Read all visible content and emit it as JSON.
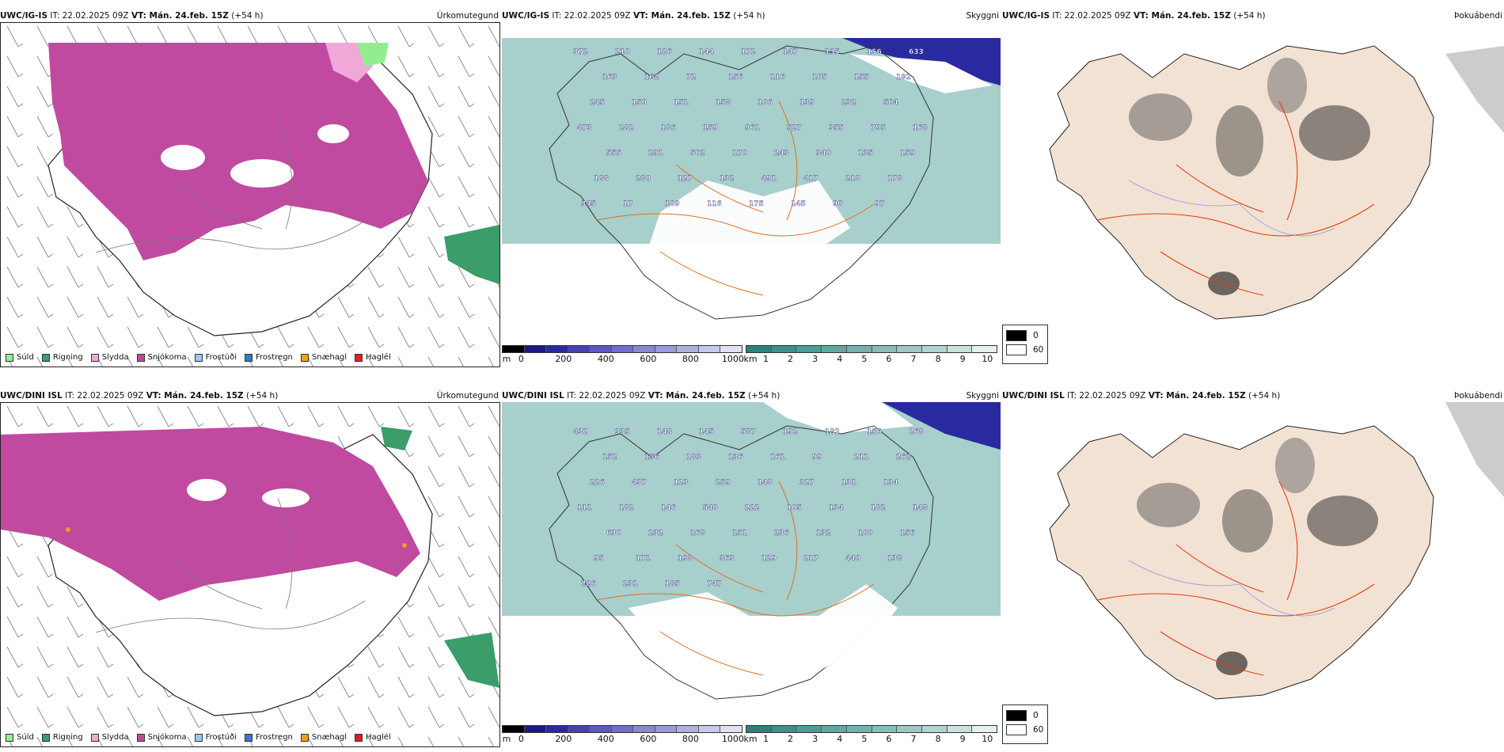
{
  "rows": [
    {
      "model": "UWC/IG-IS",
      "it": "IT: 22.02.2025 09Z",
      "vt": "VT: Mán. 24.feb. 15Z",
      "lead": "(+54 h)",
      "precip_title": "Úrkomutegund",
      "cloud_title": "Skyggni",
      "fog_title": "Þokuábendi"
    },
    {
      "model": "UWC/DINI ISL",
      "it": "IT: 22.02.2025 09Z",
      "vt": "VT: Mán. 24.feb. 15Z",
      "lead": "(+54 h)",
      "precip_title": "Úrkomutegund",
      "cloud_title": "Skyggni",
      "fog_title": "Þokuábendi"
    }
  ],
  "precip_legend": [
    {
      "label": "Súld",
      "color": "#90ee90"
    },
    {
      "label": "Rigning",
      "color": "#3a9d6a"
    },
    {
      "label": "Slydda",
      "color": "#f0a8d8"
    },
    {
      "label": "Snjókoma",
      "color": "#c04aa0"
    },
    {
      "label": "Frostúði",
      "color": "#9cc7f0"
    },
    {
      "label": "Frostregn",
      "color": "#3a78c8"
    },
    {
      "label": "Snæhagl",
      "color": "#f0a020"
    },
    {
      "label": "Haglél",
      "color": "#e02020"
    }
  ],
  "height_scale": {
    "unit": "m",
    "ticks": [
      "0",
      "200",
      "400",
      "600",
      "800",
      "1000"
    ],
    "colors": [
      "#000000",
      "#1a1a80",
      "#2a2aa0",
      "#4444b0",
      "#5a5ac0",
      "#7070c8",
      "#8888d0",
      "#9a9ad8",
      "#b0b0e0",
      "#c8c8ea",
      "#e0e0f4"
    ]
  },
  "visibility_scale": {
    "unit": "km",
    "ticks": [
      "1",
      "2",
      "3",
      "4",
      "5",
      "6",
      "7",
      "8",
      "9",
      "10"
    ],
    "colors": [
      "#2f7f7a",
      "#3f8f8a",
      "#4f9c96",
      "#60a8a2",
      "#72b3ad",
      "#85beb8",
      "#9ac9c3",
      "#b0d5d0",
      "#c8e2de",
      "#e2f0ee"
    ]
  },
  "fog_legend": [
    {
      "label": "0",
      "color": "#000000"
    },
    {
      "label": "60",
      "color": "#ffffff"
    }
  ],
  "ceiling_labels_top": [
    "372",
    "210",
    "126",
    "144",
    "172",
    "147",
    "135",
    "156",
    "633",
    "163",
    "162",
    "72",
    "156",
    "116",
    "105",
    "155",
    "182",
    "245",
    "150",
    "151",
    "158",
    "106",
    "139",
    "232",
    "504",
    "473",
    "282",
    "186",
    "159",
    "961",
    "527",
    "355",
    "795",
    "168",
    "555",
    "291",
    "502",
    "170",
    "243",
    "340",
    "135",
    "159",
    "188",
    "280",
    "127",
    "132",
    "491",
    "417",
    "218",
    "178",
    "345",
    "17",
    "109",
    "116",
    "175",
    "145",
    "90",
    "97"
  ],
  "ceiling_labels_bottom": [
    "432",
    "335",
    "148",
    "145",
    "587",
    "192",
    "182",
    "156",
    "268",
    "152",
    "156",
    "183",
    "136",
    "161",
    "99",
    "211",
    "262",
    "226",
    "437",
    "123",
    "259",
    "148",
    "327",
    "131",
    "134",
    "111",
    "182",
    "146",
    "540",
    "222",
    "105",
    "134",
    "182",
    "148",
    "630",
    "232",
    "168",
    "151",
    "236",
    "132",
    "100",
    "156",
    "95",
    "171",
    "198",
    "363",
    "129",
    "217",
    "440",
    "138",
    "226",
    "231",
    "185",
    "747"
  ]
}
